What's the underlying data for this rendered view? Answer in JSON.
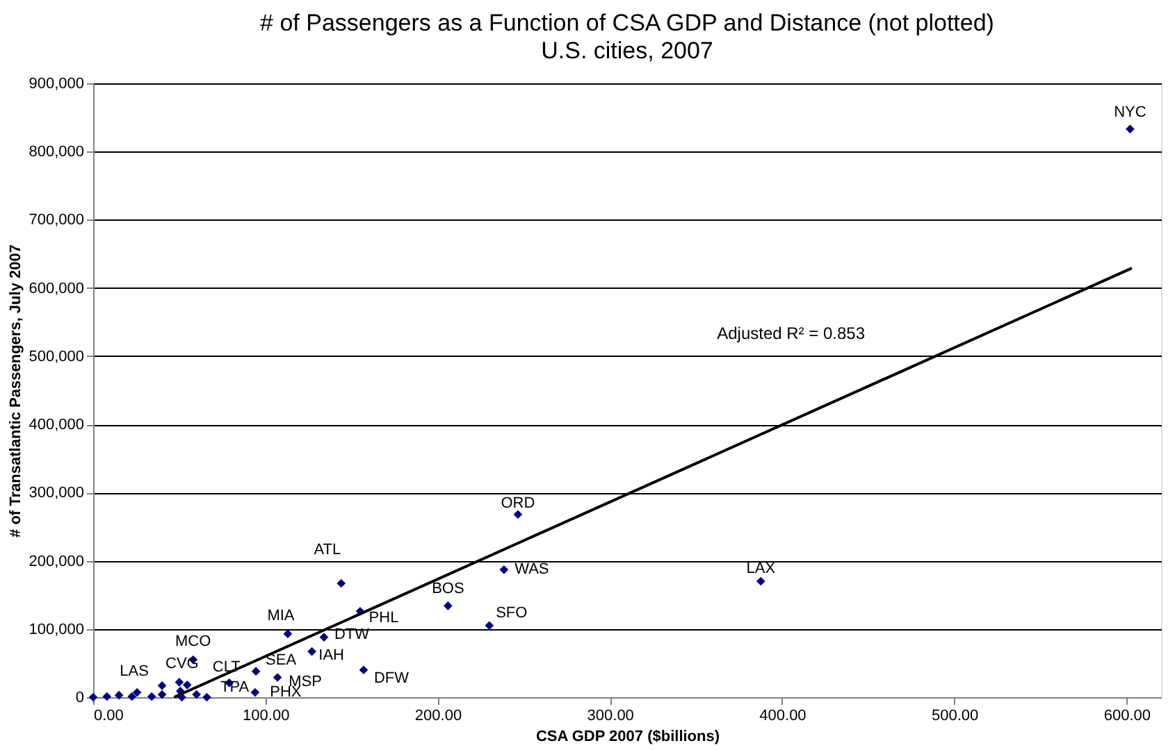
{
  "chart_data": {
    "type": "scatter",
    "title": "# of Passengers as a Function of CSA GDP and Distance (not plotted)",
    "subtitle": "U.S. cities, 2007",
    "xlabel": "CSA GDP 2007 ($billions)",
    "ylabel": "# of Transatlantic Passengers, July 2007",
    "xlim": [
      0,
      620
    ],
    "xticks": [
      {
        "value": 0,
        "label": "0.00"
      },
      {
        "value": 100,
        "label": "100.00"
      },
      {
        "value": 200,
        "label": "200.00"
      },
      {
        "value": 300,
        "label": "300.00"
      },
      {
        "value": 400,
        "label": "400.00"
      },
      {
        "value": 500,
        "label": "500.00"
      },
      {
        "value": 600,
        "label": "600.00"
      }
    ],
    "ylim": [
      0,
      900000
    ],
    "yticks": [
      {
        "value": 0,
        "label": "0"
      },
      {
        "value": 100000,
        "label": "100,000"
      },
      {
        "value": 200000,
        "label": "200,000"
      },
      {
        "value": 300000,
        "label": "300,000"
      },
      {
        "value": 400000,
        "label": "400,000"
      },
      {
        "value": 500000,
        "label": "500,000"
      },
      {
        "value": 600000,
        "label": "600,000"
      },
      {
        "value": 700000,
        "label": "700,000"
      },
      {
        "value": 800000,
        "label": "800,000"
      },
      {
        "value": 900000,
        "label": "900,000"
      }
    ],
    "grid": "y",
    "marker": "diamond",
    "series": [
      {
        "type": "scatter",
        "color": "#000080",
        "x": [
          0,
          8,
          15,
          22.5,
          25.5,
          34,
          40,
          40,
          50,
          50.6,
          54.6,
          51.5,
          58,
          60,
          66,
          79,
          94.5,
          94,
          107,
          113,
          127,
          134,
          157,
          144,
          155,
          206,
          230,
          238.5,
          246.6,
          387.6,
          602
        ],
        "values": [
          0,
          1000,
          3000,
          1000,
          7000,
          1000,
          17000,
          4000,
          22000,
          9000,
          18000,
          0,
          55000,
          4000,
          0,
          21000,
          38000,
          7000,
          29000,
          93000,
          67000,
          88000,
          40000,
          167000,
          126000,
          134000,
          105000,
          187000,
          268000,
          170000,
          833000
        ]
      },
      {
        "type": "line",
        "color": "#000000",
        "line_style": "solid",
        "marker": "none",
        "x": [
          47,
          603
        ],
        "values": [
          0,
          629000
        ]
      }
    ],
    "annotations": [
      {
        "text": "NYC",
        "x": 602,
        "y": 833000
      },
      {
        "text": "ORD",
        "x": 246.6,
        "y": 268000
      },
      {
        "text": "ATL",
        "x": 144,
        "y": 167000
      },
      {
        "text": "LAX",
        "x": 387.6,
        "y": 170000
      },
      {
        "text": "WAS",
        "x": 238.5,
        "y": 187000
      },
      {
        "text": "BOS",
        "x": 206,
        "y": 134000
      },
      {
        "text": "PHL",
        "x": 155,
        "y": 126000
      },
      {
        "text": "MIA",
        "x": 113,
        "y": 93000
      },
      {
        "text": "DTW",
        "x": 134,
        "y": 88000
      },
      {
        "text": "SFO",
        "x": 230,
        "y": 105000
      },
      {
        "text": "IAH",
        "x": 127,
        "y": 67000
      },
      {
        "text": "DFW",
        "x": 157,
        "y": 40000
      },
      {
        "text": "SEA",
        "x": 94.5,
        "y": 38000
      },
      {
        "text": "MSP",
        "x": 107,
        "y": 29000
      },
      {
        "text": "MCO",
        "x": 58,
        "y": 55000
      },
      {
        "text": "CVG",
        "x": 50,
        "y": 22000
      },
      {
        "text": "CLT",
        "x": 79,
        "y": 21000
      },
      {
        "text": "LAS",
        "x": 40,
        "y": 17000
      },
      {
        "text": "TPA",
        "x": 66,
        "y": 0
      },
      {
        "text": "PHX",
        "x": 94,
        "y": 7000
      },
      "Adjusted R² = 0.853"
    ]
  }
}
